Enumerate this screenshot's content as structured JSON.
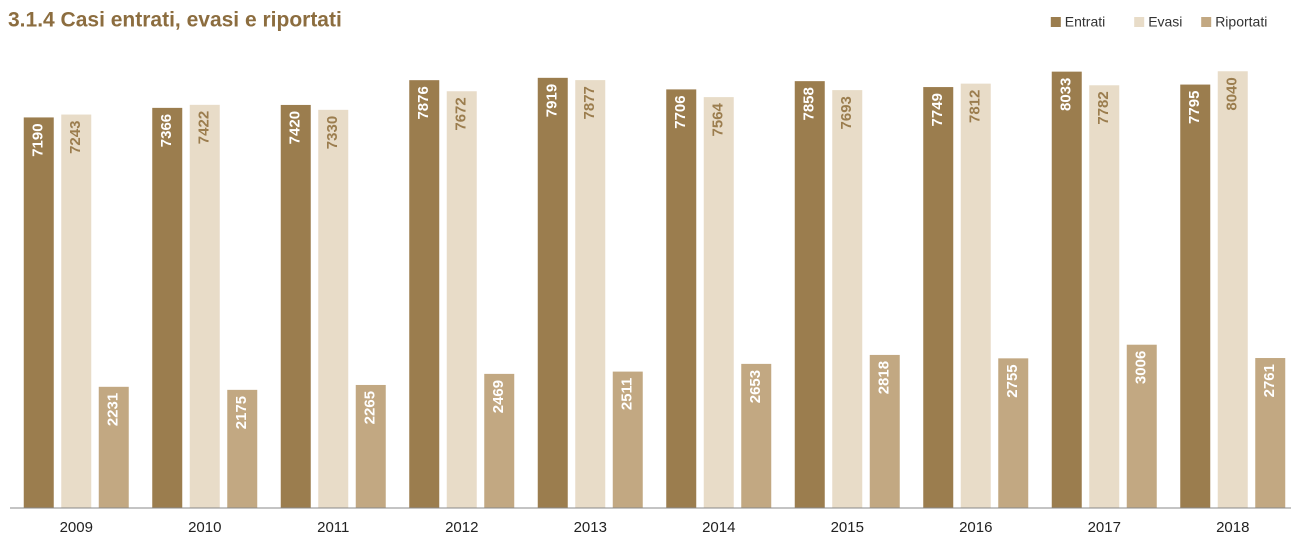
{
  "chart_data": {
    "type": "bar",
    "title": "3.1.4 Casi entrati, evasi e riportati",
    "categories": [
      "2009",
      "2010",
      "2011",
      "2012",
      "2013",
      "2014",
      "2015",
      "2016",
      "2017",
      "2018"
    ],
    "series": [
      {
        "name": "Entrati",
        "color": "#9b7d4e",
        "values": [
          7190,
          7366,
          7420,
          7876,
          7919,
          7706,
          7858,
          7749,
          8033,
          7795
        ]
      },
      {
        "name": "Evasi",
        "color": "#e8dcc8",
        "values": [
          7243,
          7422,
          7330,
          7672,
          7877,
          7564,
          7693,
          7812,
          7782,
          8040
        ]
      },
      {
        "name": "Riportati",
        "color": "#c2a882",
        "values": [
          2231,
          2175,
          2265,
          2469,
          2511,
          2653,
          2818,
          2755,
          3006,
          2761
        ]
      }
    ],
    "ylim": [
      0,
      8100
    ],
    "legend": "top-right"
  }
}
